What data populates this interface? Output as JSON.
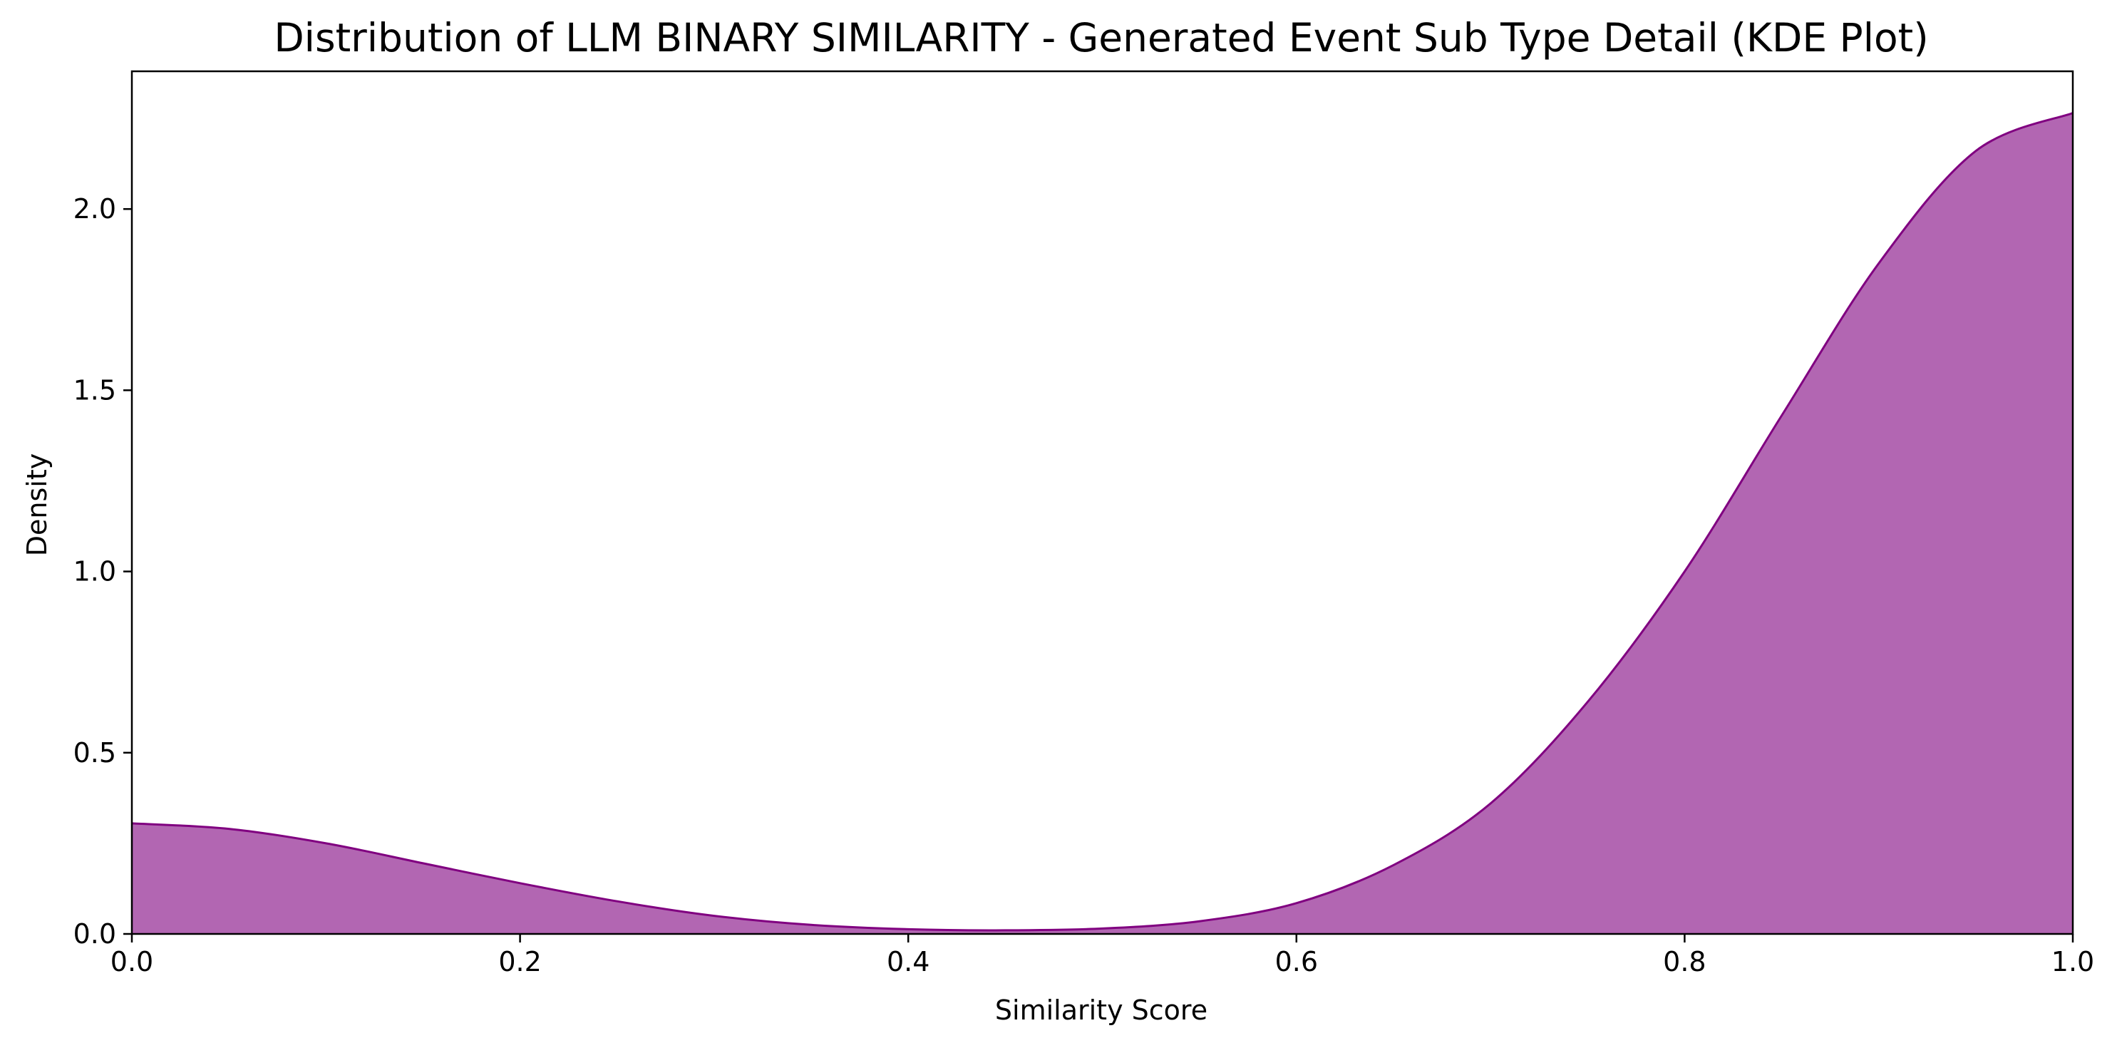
{
  "chart_data": {
    "type": "area",
    "title": "Distribution of LLM BINARY SIMILARITY - Generated Event Sub Type Detail (KDE Plot)",
    "xlabel": "Similarity Score",
    "ylabel": "Density",
    "xlim": [
      0.0,
      1.0
    ],
    "ylim": [
      0.0,
      2.38
    ],
    "xticks": [
      0.0,
      0.2,
      0.4,
      0.6,
      0.8,
      1.0
    ],
    "xtick_labels": [
      "0.0",
      "0.2",
      "0.4",
      "0.6",
      "0.8",
      "1.0"
    ],
    "yticks": [
      0.0,
      0.5,
      1.0,
      1.5,
      2.0
    ],
    "ytick_labels": [
      "0.0",
      "0.5",
      "1.0",
      "1.5",
      "2.0"
    ],
    "grid": false,
    "colors": {
      "fill": "#b266b2",
      "line": "#800080"
    },
    "series": [
      {
        "x": [
          0.0,
          0.05,
          0.1,
          0.15,
          0.2,
          0.25,
          0.3,
          0.35,
          0.4,
          0.45,
          0.5,
          0.55,
          0.6,
          0.65,
          0.7,
          0.75,
          0.8,
          0.85,
          0.9,
          0.95,
          1.0
        ],
        "y": [
          0.305,
          0.29,
          0.25,
          0.195,
          0.14,
          0.09,
          0.05,
          0.025,
          0.013,
          0.01,
          0.015,
          0.035,
          0.085,
          0.19,
          0.36,
          0.64,
          1.0,
          1.43,
          1.85,
          2.16,
          2.265
        ]
      }
    ]
  }
}
